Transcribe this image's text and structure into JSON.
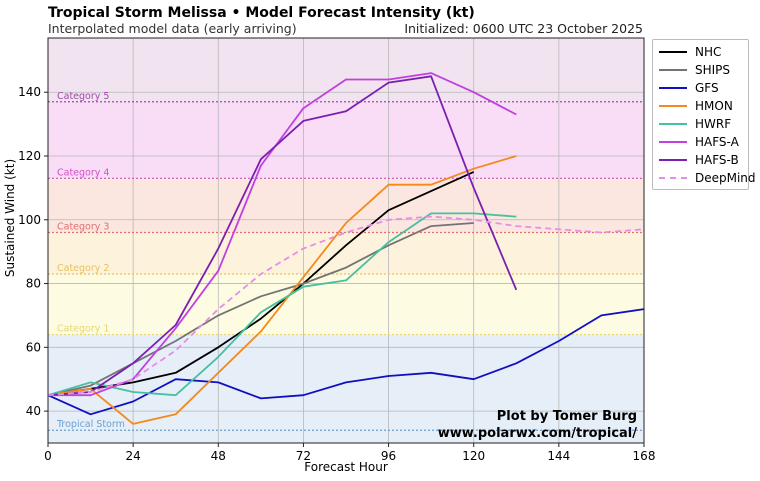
{
  "header": {
    "title": "Tropical Storm Melissa • Model Forecast Intensity (kt)",
    "subtitle": "Interpolated model data (early arriving)",
    "initialized": "Initialized: 0600 UTC 23 October 2025"
  },
  "credit": {
    "line1": "Plot by Tomer Burg",
    "line2": "www.polarwx.com/tropical/"
  },
  "chart_data": {
    "type": "line",
    "title": "Tropical Storm Melissa • Model Forecast Intensity (kt)",
    "subtitle": "Interpolated model data (early arriving)",
    "xlabel": "Forecast Hour",
    "ylabel": "Sustained Wind (kt)",
    "xlim": [
      0,
      168
    ],
    "ylim": [
      30,
      157
    ],
    "xticks": [
      0,
      24,
      48,
      72,
      96,
      120,
      144,
      168
    ],
    "yticks": [
      40,
      60,
      80,
      100,
      120,
      140
    ],
    "grid": true,
    "legend_position": "outside-right",
    "categories": [
      {
        "name": "Tropical Storm",
        "threshold": 34,
        "from": 30,
        "to": 64,
        "band_color": "#e6eef8",
        "line_color": "#6a9fd0"
      },
      {
        "name": "Category 1",
        "threshold": 64,
        "from": 64,
        "to": 83,
        "band_color": "#fdfbe2",
        "line_color": "#e8d870"
      },
      {
        "name": "Category 2",
        "threshold": 83,
        "from": 83,
        "to": 96,
        "band_color": "#fdf3dc",
        "line_color": "#e8c060"
      },
      {
        "name": "Category 3",
        "threshold": 96,
        "from": 96,
        "to": 113,
        "band_color": "#fbe6e0",
        "line_color": "#e07070"
      },
      {
        "name": "Category 4",
        "threshold": 113,
        "from": 113,
        "to": 137,
        "band_color": "#f9dcf6",
        "line_color": "#d050c8"
      },
      {
        "name": "Category 5",
        "threshold": 137,
        "from": 137,
        "to": 157,
        "band_color": "#f1e3ef",
        "line_color": "#a04aa8"
      }
    ],
    "series": [
      {
        "name": "NHC",
        "color": "#000000",
        "dashed": false,
        "x": [
          0,
          12,
          24,
          36,
          48,
          60,
          72,
          84,
          96,
          108,
          120
        ],
        "y": [
          45,
          47,
          49,
          52,
          60,
          69,
          80,
          92,
          103,
          109,
          115
        ]
      },
      {
        "name": "SHIPS",
        "color": "#737373",
        "dashed": false,
        "x": [
          0,
          12,
          24,
          36,
          48,
          60,
          72,
          84,
          96,
          108,
          120
        ],
        "y": [
          45,
          48,
          55,
          62,
          70,
          76,
          80,
          85,
          92,
          98,
          99
        ]
      },
      {
        "name": "GFS",
        "color": "#1010c0",
        "dashed": false,
        "x": [
          0,
          12,
          24,
          36,
          48,
          60,
          72,
          84,
          96,
          108,
          120,
          132,
          144,
          156,
          168
        ],
        "y": [
          45,
          39,
          43,
          50,
          49,
          44,
          45,
          49,
          51,
          52,
          50,
          55,
          62,
          70,
          72
        ]
      },
      {
        "name": "HMON",
        "color": "#f28a1c",
        "dashed": false,
        "x": [
          0,
          12,
          24,
          36,
          48,
          60,
          72,
          84,
          96,
          108,
          120,
          132
        ],
        "y": [
          45,
          47,
          36,
          39,
          52,
          65,
          82,
          99,
          111,
          111,
          116,
          120
        ]
      },
      {
        "name": "HWRF",
        "color": "#46c0a0",
        "dashed": false,
        "x": [
          0,
          12,
          24,
          36,
          48,
          60,
          72,
          84,
          96,
          108,
          120,
          132
        ],
        "y": [
          45,
          49,
          46,
          45,
          57,
          71,
          79,
          81,
          93,
          102,
          102,
          101
        ]
      },
      {
        "name": "HAFS-A",
        "color": "#c040e0",
        "dashed": false,
        "x": [
          0,
          12,
          24,
          36,
          48,
          60,
          72,
          84,
          96,
          108,
          120,
          132
        ],
        "y": [
          45,
          45,
          50,
          66,
          84,
          117,
          135,
          144,
          144,
          146,
          140,
          133
        ]
      },
      {
        "name": "HAFS-B",
        "color": "#7a20b0",
        "dashed": false,
        "x": [
          0,
          12,
          24,
          36,
          48,
          60,
          72,
          84,
          96,
          108,
          120,
          132
        ],
        "y": [
          45,
          46,
          55,
          67,
          91,
          119,
          131,
          134,
          143,
          145,
          110,
          78
        ]
      },
      {
        "name": "DeepMind",
        "color": "#e58de8",
        "dashed": true,
        "x": [
          0,
          12,
          24,
          36,
          48,
          60,
          72,
          84,
          96,
          108,
          120,
          132,
          144,
          156,
          168
        ],
        "y": [
          45,
          46,
          50,
          59,
          72,
          83,
          91,
          96,
          100,
          101,
          100,
          98,
          97,
          96,
          97
        ]
      }
    ]
  }
}
